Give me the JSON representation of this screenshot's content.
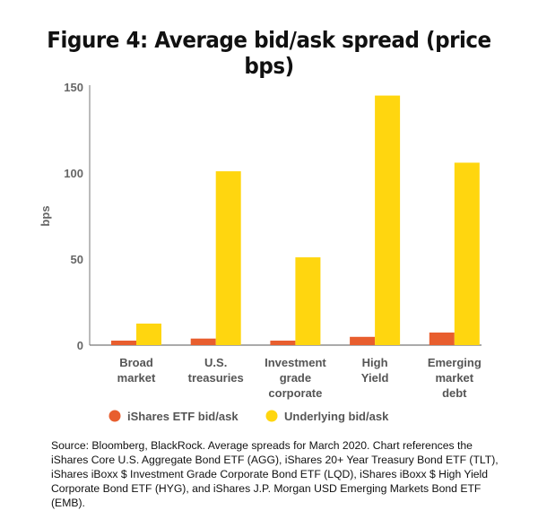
{
  "chart_data": {
    "type": "bar",
    "title": "Figure 4: Average bid/ask spread  (price bps)",
    "xlabel": "",
    "ylabel": "bps",
    "ylim": [
      0,
      150
    ],
    "yticks": [
      "0",
      "50",
      "100",
      "150"
    ],
    "grid": false,
    "legend_position": "bottom",
    "categories": [
      [
        "Broad",
        "market"
      ],
      [
        "U.S.",
        "treasuries"
      ],
      [
        "Investment",
        "grade",
        "corporate"
      ],
      [
        "High",
        "Yield"
      ],
      [
        "Emerging",
        "market",
        "debt"
      ]
    ],
    "series": [
      {
        "name": "iShares ETF bid/ask",
        "color": "#e85e2e",
        "values": [
          2.6,
          3.8,
          2.6,
          4.8,
          7.3
        ]
      },
      {
        "name": "Underlying bid/ask",
        "color": "#ffd60f",
        "values": [
          12.5,
          101,
          51,
          145,
          106
        ]
      }
    ]
  },
  "source": "Source: Bloomberg, BlackRock. Average spreads for March 2020. Chart references the iShares Core U.S. Aggregate Bond ETF (AGG), iShares 20+ Year Treasury Bond ETF (TLT), iShares iBoxx $ Investment Grade Corporate Bond ETF (LQD), iShares iBoxx $ High Yield Corporate Bond ETF (HYG), and iShares J.P. Morgan USD Emerging Markets Bond ETF (EMB)."
}
